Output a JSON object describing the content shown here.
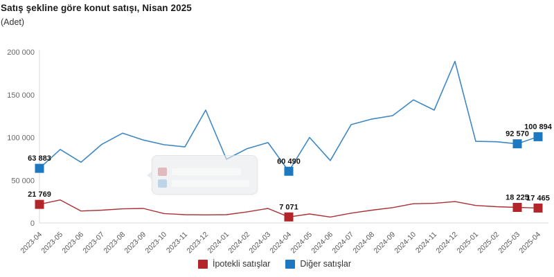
{
  "header": {
    "title": "Satış şekline göre konut satışı, Nisan 2025",
    "subtitle": "(Adet)"
  },
  "colors": {
    "mortgaged_line": "#ac2f33",
    "mortgaged_marker": "#b2262b",
    "other_line": "#3d87c3",
    "other_marker": "#1d78c0",
    "axis_line": "#d9d9d9",
    "ytick_text": "#666666",
    "xtick_text": "#555555",
    "point_label_text": "#111111"
  },
  "legend": {
    "items": [
      {
        "label": "İpotekli satışlar",
        "color": "#b2262b"
      },
      {
        "label": "Diğer satışlar",
        "color": "#1d78c0"
      }
    ]
  },
  "chart_data": {
    "type": "line",
    "title": "Satış şekline göre konut satışı, Nisan 2025",
    "ylabel": "Adet",
    "ylim": [
      0,
      200000
    ],
    "ytick_values": [
      0,
      50000,
      100000,
      150000,
      200000
    ],
    "ytick_labels": [
      "0",
      "50 000",
      "100 000",
      "150 000",
      "200 000"
    ],
    "grid": false,
    "legend_position": "bottom",
    "x": [
      "2023-04",
      "2023-05",
      "2023-06",
      "2023-07",
      "2023-08",
      "2023-09",
      "2023-10",
      "2023-11",
      "2023-12",
      "2024-01",
      "2024-02",
      "2024-03",
      "2024-04",
      "2024-05",
      "2024-06",
      "2024-07",
      "2024-08",
      "2024-09",
      "2024-10",
      "2024-11",
      "2024-12",
      "2025-01",
      "2025-02",
      "2025-03",
      "2025-04"
    ],
    "series": [
      {
        "name": "İpotekli satışlar",
        "color": "#ac2f33",
        "marker_color": "#b2262b",
        "values": [
          21769,
          27000,
          14000,
          15000,
          16500,
          17000,
          11000,
          9700,
          9500,
          9700,
          13000,
          17000,
          7071,
          10500,
          7000,
          11500,
          15000,
          18000,
          22500,
          23000,
          25000,
          20500,
          19000,
          18225,
          17465
        ]
      },
      {
        "name": "Diğer satışlar",
        "color": "#3d87c3",
        "marker_color": "#1d78c0",
        "values": [
          63883,
          86000,
          71000,
          92000,
          105000,
          97000,
          91500,
          89000,
          132000,
          74500,
          87000,
          94000,
          60490,
          100000,
          73000,
          115000,
          121500,
          125500,
          144000,
          132000,
          189000,
          95500,
          95000,
          92570,
          100894
        ]
      }
    ],
    "labeled_points": [
      {
        "series": 0,
        "index": 0,
        "label": "21 769"
      },
      {
        "series": 0,
        "index": 12,
        "label": "7 071"
      },
      {
        "series": 0,
        "index": 23,
        "label": "18 225"
      },
      {
        "series": 0,
        "index": 24,
        "label": "17 465"
      },
      {
        "series": 1,
        "index": 0,
        "label": "63 883"
      },
      {
        "series": 1,
        "index": 12,
        "label": "60 490"
      },
      {
        "series": 1,
        "index": 23,
        "label": "92 570"
      },
      {
        "series": 1,
        "index": 24,
        "label": "100 894"
      }
    ]
  }
}
